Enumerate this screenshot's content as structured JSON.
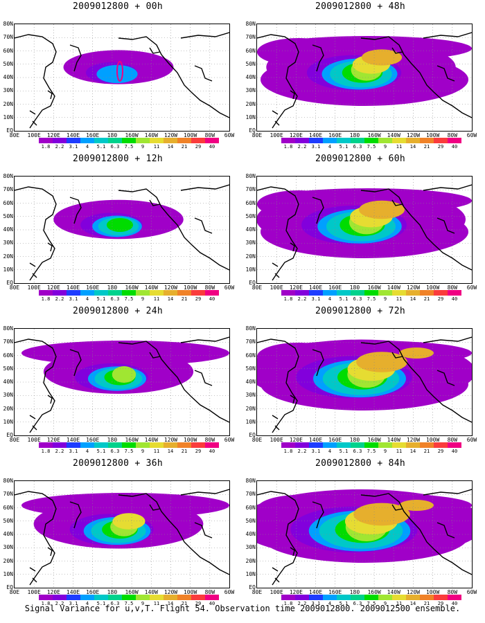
{
  "chart_data": [
    {
      "type": "heatmap",
      "title": "2009012800 + 00h",
      "lead_hours": 0,
      "spread_level": 0
    },
    {
      "type": "heatmap",
      "title": "2009012800 + 48h",
      "lead_hours": 48,
      "spread_level": 4
    },
    {
      "type": "heatmap",
      "title": "2009012800 + 12h",
      "lead_hours": 12,
      "spread_level": 1
    },
    {
      "type": "heatmap",
      "title": "2009012800 + 60h",
      "lead_hours": 60,
      "spread_level": 5
    },
    {
      "type": "heatmap",
      "title": "2009012800 + 24h",
      "lead_hours": 24,
      "spread_level": 2
    },
    {
      "type": "heatmap",
      "title": "2009012800 + 72h",
      "lead_hours": 72,
      "spread_level": 6
    },
    {
      "type": "heatmap",
      "title": "2009012800 + 36h",
      "lead_hours": 36,
      "spread_level": 3
    },
    {
      "type": "heatmap",
      "title": "2009012800 + 84h",
      "lead_hours": 84,
      "spread_level": 7
    }
  ],
  "x_ticks": [
    "80E",
    "100E",
    "120E",
    "140E",
    "160E",
    "180",
    "160W",
    "140W",
    "120W",
    "100W",
    "80W",
    "60W"
  ],
  "y_ticks": [
    "80N",
    "70N",
    "60N",
    "50N",
    "40N",
    "30N",
    "20N",
    "10N",
    "EQ"
  ],
  "colorbar": {
    "levels": [
      "1.8",
      "2.2",
      "3.1",
      "4",
      "5.1",
      "6.3",
      "7.5",
      "9",
      "11",
      "14",
      "21",
      "29",
      "40"
    ],
    "colors": [
      "#a000c8",
      "#8200dc",
      "#1e3cff",
      "#00a0ff",
      "#00c8c8",
      "#00d28c",
      "#00dc00",
      "#a0e632",
      "#e6dc32",
      "#e6af2d",
      "#f08228",
      "#fa3c3c",
      "#f00082"
    ]
  },
  "caption": "Signal Variance for u,v,T. Flight 54. Observation time 2009012800. 2009012500 ensemble."
}
